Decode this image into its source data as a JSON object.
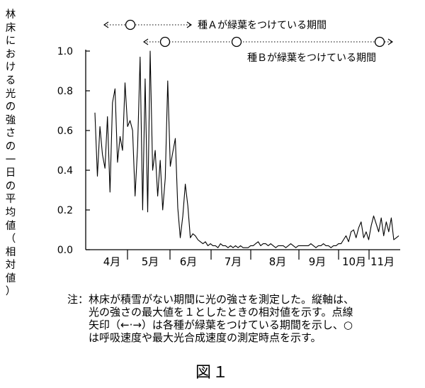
{
  "chart_data": {
    "type": "line",
    "ylabel": "林床における光の強さの一日の平均値（相対値）",
    "ylim": [
      0,
      1.0
    ],
    "yticks": [
      "0.0",
      "0.2",
      "0.4",
      "0.6",
      "0.8",
      "1.0"
    ],
    "months": [
      "4月",
      "5月",
      "6月",
      "7月",
      "8月",
      "9月",
      "10月",
      "11月"
    ],
    "series": [
      {
        "values": [
          0.69,
          0.37,
          0.62,
          0.48,
          0.41,
          0.67,
          0.29,
          0.74,
          0.81,
          0.44,
          0.57,
          0.5,
          0.84,
          0.62,
          0.65,
          0.6,
          0.27,
          0.52,
          0.97,
          0.2,
          0.86,
          0.19,
          1.0,
          0.4,
          0.5,
          0.27,
          0.45,
          0.2,
          0.36,
          0.85,
          0.42,
          0.49,
          0.56,
          0.21,
          0.06,
          0.17,
          0.33,
          0.22,
          0.06,
          0.08,
          0.07,
          0.05,
          0.04,
          0.03,
          0.04,
          0.02,
          0.03,
          0.02,
          0.02,
          0.01,
          0.03,
          0.02,
          0.02,
          0.01,
          0.02,
          0.01,
          0.02,
          0.01,
          0.02,
          0.01,
          0.01,
          0.01,
          0.02,
          0.02,
          0.03,
          0.04,
          0.02,
          0.03,
          0.03,
          0.02,
          0.03,
          0.02,
          0.01,
          0.02,
          0.02,
          0.02,
          0.01,
          0.02,
          0.03,
          0.02,
          0.01,
          0.02,
          0.02,
          0.02,
          0.02,
          0.02,
          0.03,
          0.02,
          0.01,
          0.02,
          0.02,
          0.03,
          0.02,
          0.02,
          0.01,
          0.02,
          0.02,
          0.03,
          0.03,
          0.05,
          0.07,
          0.04,
          0.09,
          0.1,
          0.06,
          0.11,
          0.14,
          0.06,
          0.09,
          0.05,
          0.12,
          0.17,
          0.13,
          0.09,
          0.16,
          0.07,
          0.14,
          0.09,
          0.16,
          0.05,
          0.06,
          0.07
        ]
      }
    ],
    "periods": [
      {
        "label": "種Ａが緑葉をつけている期間",
        "start": "4月下旬",
        "end": "6月中旬",
        "marker": "5月中旬"
      },
      {
        "label": "種Ｂが緑葉をつけている期間",
        "start": "5月中旬",
        "end": "11月上旬",
        "markers": [
          "5月下旬",
          "7月下旬",
          "10月下旬"
        ]
      }
    ]
  },
  "note": {
    "head": "注：",
    "lines": [
      "林床が積雪がない期間に光の強さを測定した。縦軸は、",
      "光の強さの最大値を１としたときの相対値を示す。点線",
      "矢印（←·→）は各種が緑葉をつけている期間を示し、○",
      "は呼吸速度や最大光合成速度の測定時点を示す。"
    ]
  },
  "figure_label": "図１"
}
